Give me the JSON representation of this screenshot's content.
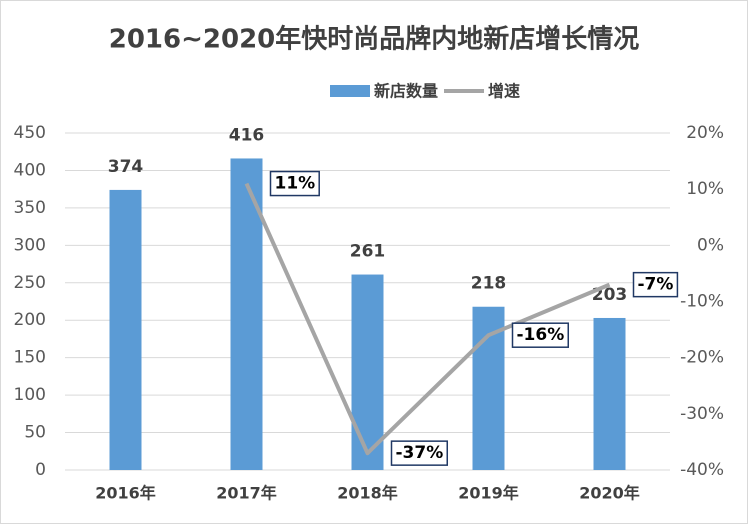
{
  "chart_data": {
    "type": "bar",
    "title": "2016~2020年快时尚品牌内地新店增长情况",
    "categories": [
      "2016年",
      "2017年",
      "2018年",
      "2019年",
      "2020年"
    ],
    "series": [
      {
        "name": "新店数量",
        "type": "bar",
        "color": "#5b9bd5",
        "values": [
          374,
          416,
          261,
          218,
          203
        ]
      },
      {
        "name": "增速",
        "type": "line",
        "axis": "y2",
        "color": "#a5a5a5",
        "values": [
          null,
          11,
          -37,
          -16,
          -7
        ],
        "value_labels": [
          null,
          "11%",
          "-37%",
          "-16%",
          "-7%"
        ]
      }
    ],
    "ylim": [
      0,
      450
    ],
    "yticks": [
      0,
      50,
      100,
      150,
      200,
      250,
      300,
      350,
      400,
      450
    ],
    "y2lim": [
      -40,
      20
    ],
    "y2ticks": [
      {
        "value": -40,
        "label": "-40%"
      },
      {
        "value": -30,
        "label": "-30%"
      },
      {
        "value": -20,
        "label": "-20%"
      },
      {
        "value": -10,
        "label": "-10%"
      },
      {
        "value": 0,
        "label": "0%"
      },
      {
        "value": 10,
        "label": "10%"
      },
      {
        "value": 20,
        "label": "20%"
      }
    ],
    "grid": true,
    "legend": "top"
  }
}
